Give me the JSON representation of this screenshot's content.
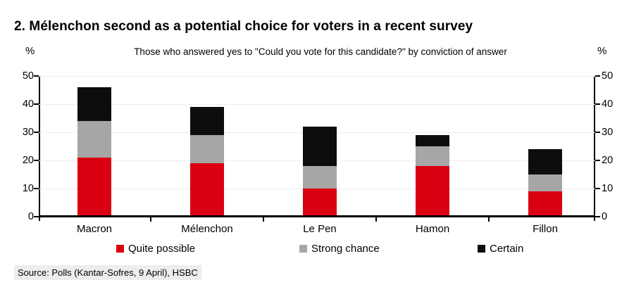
{
  "title": "2. Mélenchon second as a potential choice for voters in a recent survey",
  "subtitle": "Those who answered yes to \"Could you vote for this candidate?\" by conviction of answer",
  "y_axis": {
    "unit_label": "%",
    "ticks": [
      0,
      10,
      20,
      30,
      40,
      50
    ],
    "min": 0,
    "max": 50
  },
  "legend": [
    {
      "label": "Quite possible",
      "color": "#DB0011"
    },
    {
      "label": "Strong chance",
      "color": "#A6A6A6"
    },
    {
      "label": "Certain",
      "color": "#0D0D0D"
    }
  ],
  "source": "Source: Polls (Kantar-Sofres, 9 April), HSBC",
  "colors": {
    "quite_possible": "#DB0011",
    "strong_chance": "#A6A6A6",
    "certain": "#0D0D0D",
    "gridline": "#EDEDED",
    "axis": "#000000",
    "source_highlight": "#EDEDED"
  },
  "chart_data": {
    "type": "bar",
    "stacked": true,
    "title": "Those who answered yes to \"Could you vote for this candidate?\" by conviction of answer",
    "categories": [
      "Macron",
      "Mélenchon",
      "Le Pen",
      "Hamon",
      "Fillon"
    ],
    "series": [
      {
        "name": "Quite possible",
        "color": "#DB0011",
        "values": [
          21,
          19,
          10,
          18,
          9
        ]
      },
      {
        "name": "Strong chance",
        "color": "#A6A6A6",
        "values": [
          13,
          10,
          8,
          7,
          6
        ]
      },
      {
        "name": "Certain",
        "color": "#0D0D0D",
        "values": [
          12,
          10,
          14,
          4,
          9
        ]
      }
    ],
    "stack_totals": [
      46,
      39,
      32,
      29,
      24
    ],
    "xlabel": "",
    "ylabel": "%",
    "ylim": [
      0,
      50
    ],
    "grid": true,
    "legend_position": "bottom"
  }
}
